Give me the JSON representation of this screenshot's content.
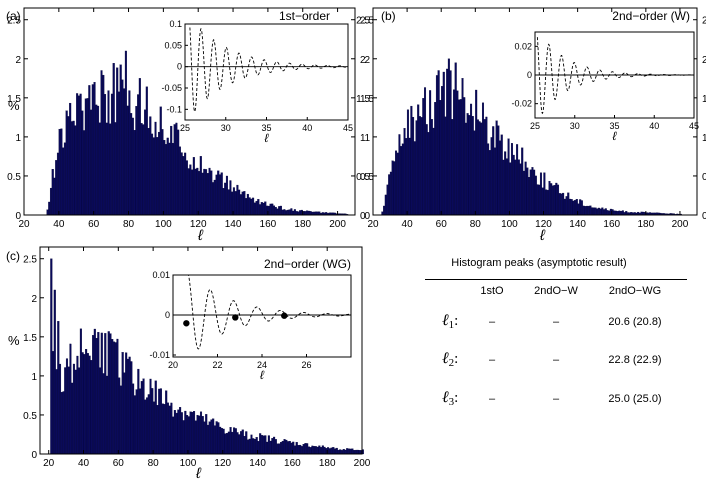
{
  "colors": {
    "bar": "#0a0a5a",
    "bar_edge": "#000033",
    "axis": "#000000",
    "dashed": "#000000",
    "dot": "#000000"
  },
  "chart_data": [
    {
      "panel": "a",
      "type": "bar",
      "panel_label": "(a)",
      "title": "1st−order",
      "xlabel": "ℓ",
      "ylabel": "%",
      "xlim": [
        20,
        210
      ],
      "ylim": [
        0,
        2.65
      ],
      "xticks": [
        "20",
        "40",
        "60",
        "80",
        "100",
        "120",
        "140",
        "160",
        "180",
        "200"
      ],
      "yticks": [
        "0",
        "0.5",
        "1",
        "1.5",
        "2",
        "2.5"
      ],
      "right_yticks": [
        "0",
        "0.5",
        "1",
        "1.5",
        "2",
        "2.5"
      ],
      "envelope": [
        [
          32,
          0
        ],
        [
          34,
          0.15
        ],
        [
          36,
          0.5
        ],
        [
          40,
          1.0
        ],
        [
          46,
          1.2
        ],
        [
          52,
          1.45
        ],
        [
          58,
          1.55
        ],
        [
          64,
          1.6
        ],
        [
          70,
          1.6
        ],
        [
          76,
          1.58
        ],
        [
          82,
          1.5
        ],
        [
          90,
          1.35
        ],
        [
          100,
          1.15
        ],
        [
          110,
          0.9
        ],
        [
          120,
          0.7
        ],
        [
          130,
          0.5
        ],
        [
          140,
          0.35
        ],
        [
          150,
          0.22
        ],
        [
          160,
          0.13
        ],
        [
          170,
          0.08
        ],
        [
          180,
          0.05
        ],
        [
          192,
          0.03
        ],
        [
          200,
          0.02
        ],
        [
          206,
          0.01
        ]
      ],
      "spikes": [
        [
          78,
          2.1
        ],
        [
          64,
          1.85
        ],
        [
          86,
          1.75
        ],
        [
          60,
          1.7
        ],
        [
          52,
          1.55
        ]
      ],
      "x_end": 205,
      "inset": {
        "xlim": [
          25,
          45
        ],
        "ylim": [
          -0.125,
          0.1
        ],
        "xticks": [
          "25",
          "30",
          "35",
          "40",
          "45"
        ],
        "yticks": [
          "-0.1",
          "-0.05",
          "0",
          "0.05",
          "0.1"
        ],
        "xlabel": "ℓ",
        "curve": {
          "amp": 0.12,
          "decay": 0.22,
          "period": 1.55,
          "phase": 0.7,
          "x0": 25.6
        }
      }
    },
    {
      "panel": "b",
      "type": "bar",
      "panel_label": "(b)",
      "title": "2nd−order (W)",
      "xlabel": "ℓ",
      "ylabel": "",
      "xlim": [
        20,
        210
      ],
      "ylim": [
        0,
        2.65
      ],
      "xticks": [
        "20",
        "40",
        "60",
        "80",
        "100",
        "120",
        "140",
        "160",
        "180",
        "200"
      ],
      "yticks": [
        "0",
        "0.5",
        "1",
        "1.5",
        "2",
        "2.5"
      ],
      "right_yticks": [
        "0",
        "0.5",
        "1",
        "1.5",
        "2",
        "2.5"
      ],
      "envelope": [
        [
          24,
          0
        ],
        [
          26,
          0.1
        ],
        [
          28,
          0.35
        ],
        [
          32,
          0.75
        ],
        [
          38,
          1.05
        ],
        [
          44,
          1.25
        ],
        [
          50,
          1.4
        ],
        [
          56,
          1.5
        ],
        [
          62,
          1.55
        ],
        [
          68,
          1.5
        ],
        [
          76,
          1.4
        ],
        [
          84,
          1.25
        ],
        [
          92,
          1.05
        ],
        [
          100,
          0.85
        ],
        [
          110,
          0.65
        ],
        [
          120,
          0.45
        ],
        [
          130,
          0.3
        ],
        [
          140,
          0.18
        ],
        [
          150,
          0.1
        ],
        [
          160,
          0.06
        ],
        [
          170,
          0.04
        ],
        [
          180,
          0.03
        ],
        [
          192,
          0.02
        ],
        [
          200,
          0.01
        ]
      ],
      "spikes": [
        [
          64,
          2.0
        ],
        [
          68,
          1.95
        ],
        [
          58,
          1.85
        ],
        [
          72,
          1.75
        ],
        [
          80,
          1.6
        ]
      ],
      "x_end": 200,
      "inset": {
        "xlim": [
          25,
          45
        ],
        "ylim": [
          -0.03,
          0.03
        ],
        "xticks": [
          "25",
          "30",
          "35",
          "40",
          "45"
        ],
        "yticks": [
          "-0.02",
          "0",
          "0.02"
        ],
        "xlabel": "ℓ",
        "curve": {
          "amp": 0.032,
          "decay": 0.28,
          "period": 1.6,
          "phase": 0.6,
          "x0": 25.3
        }
      }
    },
    {
      "panel": "c",
      "type": "bar",
      "panel_label": "(c)",
      "title": "2nd−order (WG)",
      "xlabel": "ℓ",
      "ylabel": "%",
      "xlim": [
        15,
        200
      ],
      "ylim": [
        0,
        2.65
      ],
      "xticks": [
        "20",
        "40",
        "60",
        "80",
        "100",
        "120",
        "140",
        "160",
        "180",
        "200"
      ],
      "yticks": [
        "0",
        "0.5",
        "1",
        "1.5",
        "2",
        "2.5"
      ],
      "right_yticks": [],
      "envelope": [
        [
          20,
          0
        ],
        [
          22,
          1.1
        ],
        [
          24,
          1.05
        ],
        [
          28,
          1.1
        ],
        [
          34,
          1.25
        ],
        [
          40,
          1.35
        ],
        [
          46,
          1.4
        ],
        [
          52,
          1.35
        ],
        [
          60,
          1.2
        ],
        [
          70,
          1.0
        ],
        [
          80,
          0.8
        ],
        [
          90,
          0.65
        ],
        [
          100,
          0.52
        ],
        [
          110,
          0.42
        ],
        [
          120,
          0.33
        ],
        [
          130,
          0.27
        ],
        [
          140,
          0.22
        ],
        [
          150,
          0.18
        ],
        [
          160,
          0.14
        ],
        [
          170,
          0.11
        ],
        [
          180,
          0.08
        ],
        [
          190,
          0.06
        ],
        [
          200,
          0.05
        ]
      ],
      "spikes": [
        [
          21,
          2.5
        ],
        [
          23,
          2.1
        ],
        [
          25,
          1.7
        ],
        [
          46,
          1.6
        ],
        [
          50,
          1.55
        ]
      ],
      "x_end": 200,
      "inset": {
        "xlim": [
          20,
          28
        ],
        "ylim": [
          -0.0105,
          0.01
        ],
        "xticks": [
          "20",
          "22",
          "24",
          "26"
        ],
        "yticks": [
          "-0.01",
          "0",
          "0.01"
        ],
        "xlabel": "ℓ",
        "curve": {
          "amp": 0.0115,
          "decay": 0.55,
          "period": 1.05,
          "phase": -0.2,
          "x0": 20.6
        },
        "dots": [
          20.6,
          22.8,
          25.0
        ]
      }
    }
  ],
  "table": {
    "title": "Histogram peaks  (asymptotic result)",
    "headers": [
      "1stO",
      "2ndO−W",
      "2ndO−WG"
    ],
    "rows": [
      {
        "symbol": "ℓ",
        "sub": "1",
        "colon": ":",
        "values": [
          "–",
          "–",
          "20.6 (20.8)"
        ]
      },
      {
        "symbol": "ℓ",
        "sub": "2",
        "colon": ":",
        "values": [
          "–",
          "–",
          "22.8 (22.9)"
        ]
      },
      {
        "symbol": "ℓ",
        "sub": "3",
        "colon": ":",
        "values": [
          "–",
          "–",
          "25.0 (25.0)"
        ]
      }
    ]
  }
}
